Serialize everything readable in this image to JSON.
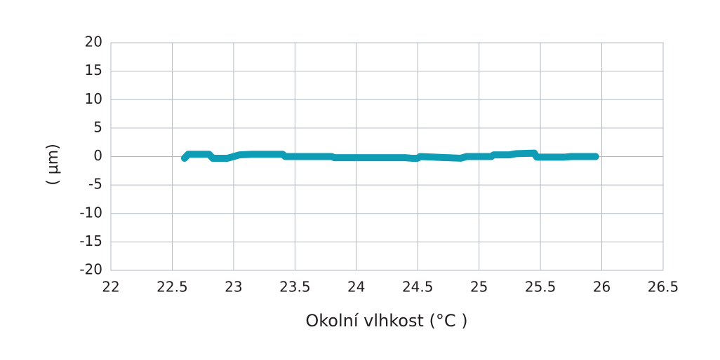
{
  "chart_data": {
    "type": "line",
    "x_label": "Okolní vlhkost (°C )",
    "y_label": "( µm)",
    "xlim": [
      22,
      26.5
    ],
    "xticks": [
      22,
      22.5,
      23,
      23.5,
      24,
      24.5,
      25,
      25.5,
      26,
      26.5
    ],
    "ylim": [
      -20,
      20
    ],
    "yticks": [
      -20,
      -15,
      -10,
      -5,
      0,
      5,
      10,
      15,
      20
    ],
    "grid": true,
    "series": [
      {
        "color": "#0e9db5",
        "x": [
          22.6,
          22.63,
          22.8,
          22.83,
          22.95,
          23.05,
          23.15,
          23.4,
          23.42,
          23.8,
          23.82,
          24.4,
          24.45,
          24.5,
          24.52,
          24.85,
          24.9,
          25.1,
          25.12,
          25.25,
          25.3,
          25.45,
          25.47,
          25.7,
          25.75,
          25.95
        ],
        "values": [
          -0.3,
          0.4,
          0.4,
          -0.3,
          -0.3,
          0.3,
          0.4,
          0.4,
          0,
          0,
          -0.2,
          -0.2,
          -0.3,
          -0.3,
          0,
          -0.3,
          0,
          0,
          0.3,
          0.3,
          0.5,
          0.6,
          -0.1,
          -0.1,
          0,
          0
        ]
      }
    ]
  }
}
